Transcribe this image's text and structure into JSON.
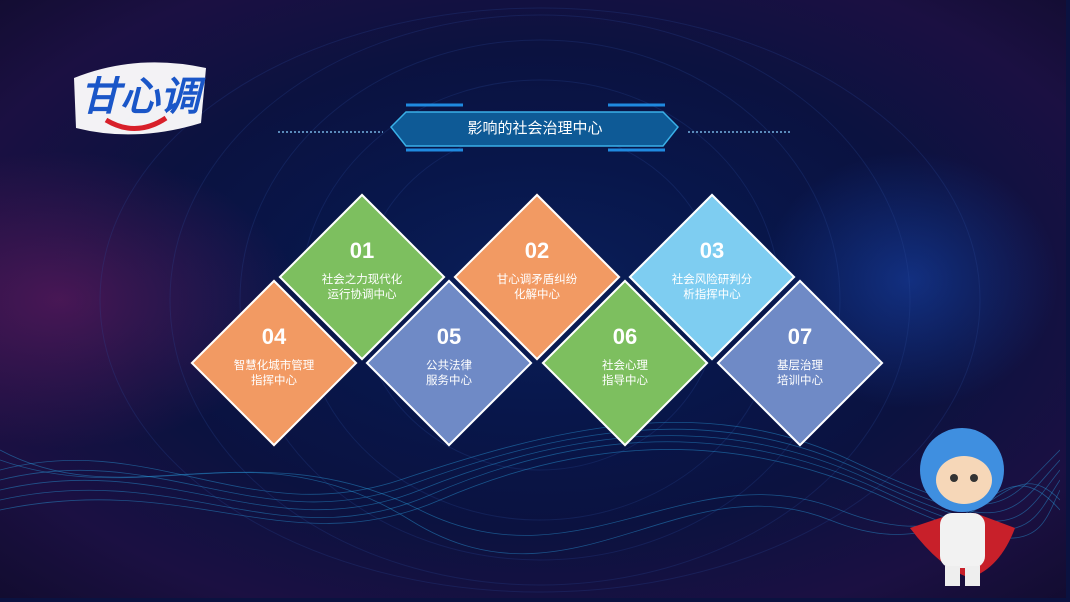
{
  "title": "影响的社会治理中心",
  "logo_text": "甘心调",
  "colors": {
    "green": "#7dbf5f",
    "orange": "#f29a63",
    "lightblue": "#7ecdf1",
    "slate": "#6f8ac6"
  },
  "centers": [
    {
      "num": "01",
      "line1": "社会之力现代化",
      "line2": "运行协调中心",
      "color": "#7dbf5f"
    },
    {
      "num": "02",
      "line1": "甘心调矛盾纠纷",
      "line2": "化解中心",
      "color": "#f29a63"
    },
    {
      "num": "03",
      "line1": "社会风险研判分",
      "line2": "析指挥中心",
      "color": "#7ecdf1"
    },
    {
      "num": "04",
      "line1": "智慧化城市管理",
      "line2": "指挥中心",
      "color": "#f29a63"
    },
    {
      "num": "05",
      "line1": "公共法律",
      "line2": "服务中心",
      "color": "#6f8ac6"
    },
    {
      "num": "06",
      "line1": "社会心理",
      "line2": "指导中心",
      "color": "#7dbf5f"
    },
    {
      "num": "07",
      "line1": "基层治理",
      "line2": "培训中心",
      "color": "#6f8ac6"
    }
  ]
}
